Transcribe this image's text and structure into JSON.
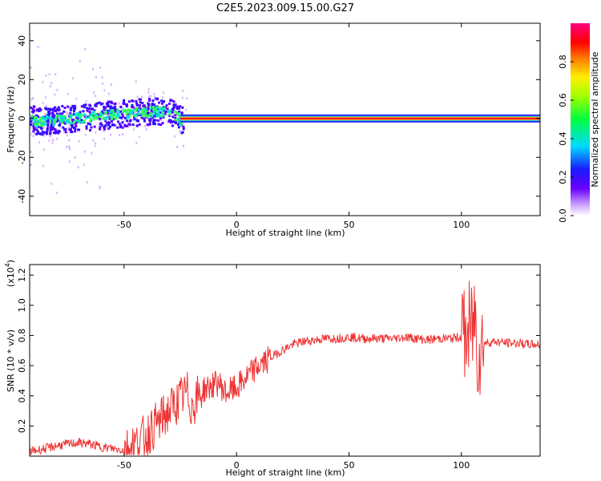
{
  "title": "C2E5.2023.009.15.00.G27",
  "colorbar": {
    "label": "Normalized spectral amplitude",
    "ticks": [
      "0.0",
      "0.2",
      "0.4",
      "0.6",
      "0.8"
    ],
    "tick_values": [
      0.0,
      0.2,
      0.4,
      0.6,
      0.8
    ],
    "range": [
      0,
      1
    ]
  },
  "chart_data": [
    {
      "type": "heatmap",
      "xlabel": "Height of straight line (km)",
      "ylabel": "Frequency (Hz)",
      "xlim": [
        -92,
        135
      ],
      "ylim": [
        -50,
        49
      ],
      "xticks": [
        -50,
        0,
        50,
        100
      ],
      "xtick_labels": [
        "-50",
        "0",
        "50",
        "100"
      ],
      "yticks": [
        -40,
        -20,
        0,
        20,
        40
      ],
      "ytick_labels": [
        "-40",
        "-20",
        "0",
        "20",
        "40"
      ],
      "colormap": "rainbow (violet-blue-cyan-green-yellow-red-magenta)",
      "description_series": [
        {
          "name": "",
          "x": [
            -90,
            -80,
            -70,
            -60,
            -50,
            -40,
            -30,
            -25,
            -20,
            -10,
            0,
            50,
            100,
            107,
            135
          ],
          "y": [
            -1,
            0,
            1,
            2,
            3,
            4,
            4,
            0,
            1,
            0,
            0,
            0,
            0,
            0,
            0
          ]
        }
      ]
    },
    {
      "type": "line",
      "xlabel": "Height of straight line (km)",
      "ylabel": "SNR (10 * v/v)",
      "yscale_label": "(x10",
      "yscale_exp": "4",
      "yscale_close": ")",
      "xlim": [
        -92,
        135
      ],
      "ylim": [
        0,
        1.27
      ],
      "xticks": [
        -50,
        0,
        50,
        100
      ],
      "xtick_labels": [
        "-50",
        "0",
        "50",
        "100"
      ],
      "yticks": [
        0.2,
        0.4,
        0.6,
        0.8,
        1.0,
        1.2
      ],
      "ytick_labels": [
        "0.2",
        "0.4",
        "0.6",
        "0.8",
        "1.0",
        "1.2"
      ],
      "grid": false,
      "colors": {
        "line": "#ee3333"
      },
      "series": [
        {
          "name": "",
          "x": [
            -92,
            -85,
            -80,
            -75,
            -70,
            -65,
            -60,
            -55,
            -50,
            -45,
            -40,
            -35,
            -30,
            -25,
            -22,
            -20,
            -15,
            -10,
            -8,
            -5,
            0,
            5,
            10,
            15,
            20,
            25,
            30,
            35,
            40,
            45,
            50,
            55,
            60,
            65,
            70,
            75,
            80,
            85,
            90,
            95,
            100,
            103,
            105,
            106,
            107,
            108,
            110,
            115,
            120,
            125,
            130,
            135
          ],
          "y": [
            0.03,
            0.05,
            0.07,
            0.08,
            0.09,
            0.08,
            0.06,
            0.05,
            0.04,
            0.08,
            0.14,
            0.22,
            0.3,
            0.38,
            0.42,
            0.33,
            0.44,
            0.47,
            0.49,
            0.42,
            0.45,
            0.53,
            0.6,
            0.65,
            0.7,
            0.74,
            0.76,
            0.77,
            0.78,
            0.78,
            0.79,
            0.78,
            0.78,
            0.78,
            0.78,
            0.79,
            0.78,
            0.77,
            0.78,
            0.78,
            0.79,
            0.8,
            0.85,
            0.95,
            0.75,
            0.7,
            0.75,
            0.76,
            0.75,
            0.75,
            0.74,
            0.74
          ]
        }
      ]
    }
  ]
}
